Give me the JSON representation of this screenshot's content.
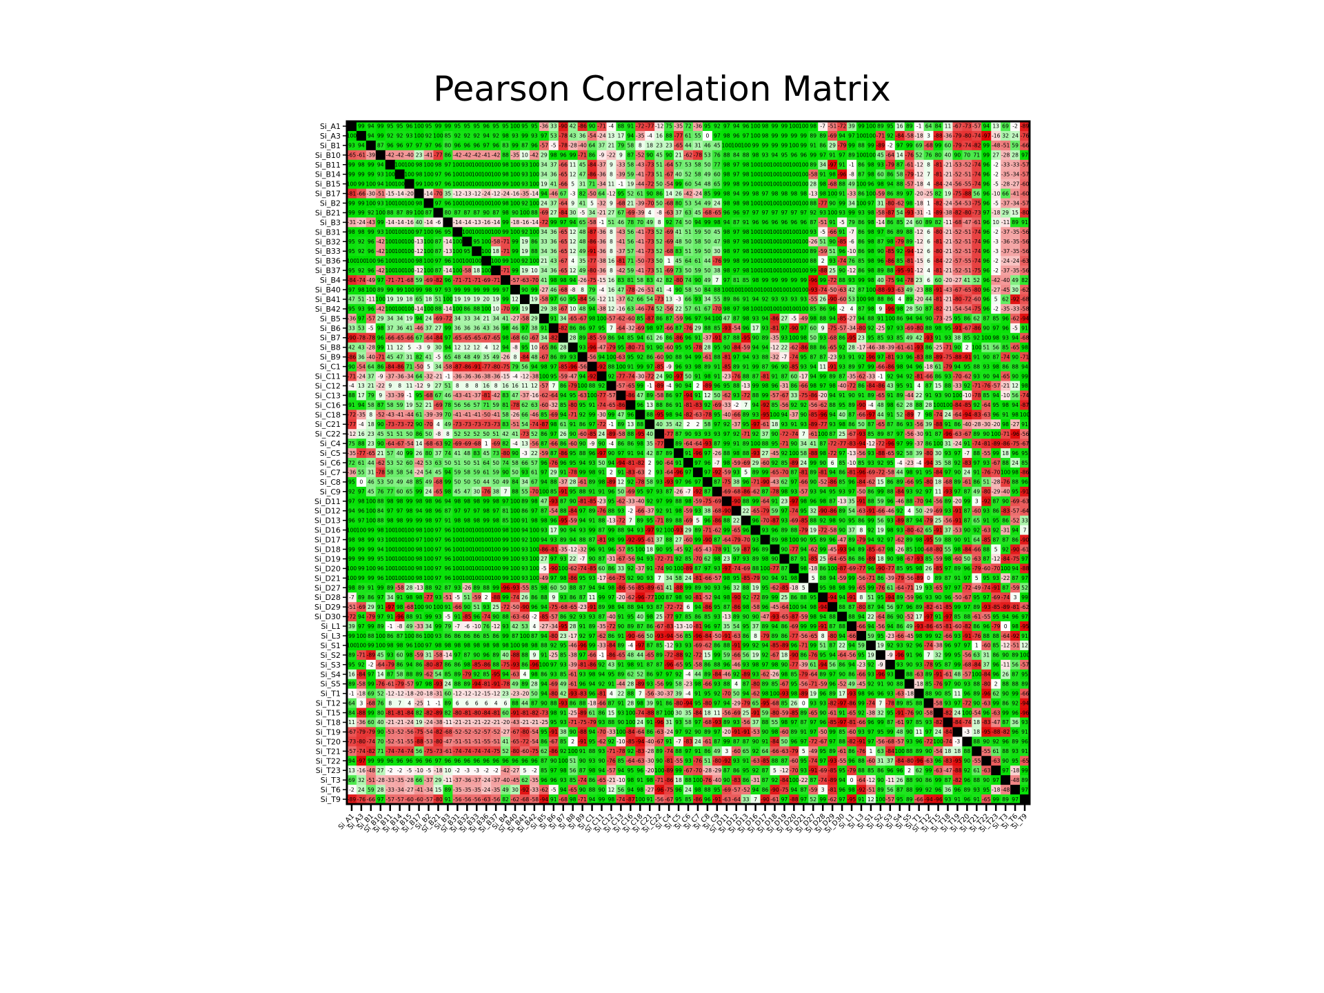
{
  "chart_data": {
    "type": "heatmap",
    "title": "Pearson Correlation Matrix",
    "labels": [
      "Si_A1",
      "Si_A3",
      "Si_B1",
      "Si_B10",
      "Si_B11",
      "Si_B14",
      "Si_B15",
      "Si_B17",
      "Si_B2",
      "Si_B21",
      "Si_B3",
      "Si_B31",
      "Si_B32",
      "Si_B33",
      "Si_B36",
      "Si_B37",
      "Si_B4",
      "Si_B40",
      "Si_B41",
      "Si_B42",
      "Si_B5",
      "Si_B6",
      "Si_B7",
      "Si_B8",
      "Si_B9",
      "Si_C1",
      "Si_C11",
      "Si_C12",
      "Si_C13",
      "Si_C16",
      "Si_C18",
      "Si_C21",
      "Si_C22",
      "Si_C4",
      "Si_C5",
      "Si_C6",
      "Si_C7",
      "Si_C8",
      "Si_C9",
      "Si_D11",
      "Si_D12",
      "Si_D13",
      "Si_D16",
      "Si_D17",
      "Si_D18",
      "Si_D19",
      "Si_D20",
      "Si_D21",
      "Si_D27",
      "Si_D28",
      "Si_D29",
      "Si_D30",
      "Si_L1",
      "Si_L3",
      "Si_S1",
      "Si_S2",
      "Si_S3",
      "Si_S4",
      "Si_S5",
      "Si_T1",
      "Si_T12",
      "Si_T15",
      "Si_T18",
      "Si_T19",
      "Si_T20",
      "Si_T21",
      "Si_T22",
      "Si_T23",
      "Si_T3",
      "Si_T6",
      "Si_T9"
    ],
    "row_labels_visible": [
      "Si_A1",
      "Si_A3",
      "Si_B1",
      "Si_B10",
      "Si_B11",
      "Si_B14",
      "Si_B15",
      "Si_B17",
      "Si_B2",
      "Si_B21",
      "Si_B3",
      "Si_B31",
      "Si_B32",
      "Si_B33",
      "Si_B36",
      "Si_B37",
      "Si_B4",
      "Si_B40",
      "Si_B41",
      "Si_B42",
      "Si_B5",
      "Si_B6",
      "Si_B7",
      "Si_B8",
      "Si_B9",
      "Si_C1",
      "Si_C11",
      "Si_C12",
      "Si_C13",
      "Si_C16",
      "Si_C18",
      "Si_C21",
      "Si_C22",
      "Si_C4",
      "Si_C5",
      "Si_C6",
      "Si_C7",
      "Si_C8",
      "Si_C9",
      "Si_D11",
      "Si_D12",
      "Si_D13",
      "Si_D16",
      "Si_D17",
      "Si_D18",
      "Si_D19",
      "Si_D20",
      "Si_D21",
      "Si_D27",
      "Si_D28",
      "Si_D29",
      "Si_D30",
      "Si_L1",
      "Si_L3",
      "Si_S1",
      "Si_S2",
      "Si_S3",
      "Si_S4",
      "Si_S5",
      "Si_T1",
      "Si_T12",
      "Si_T15",
      "Si_T18",
      "Si_T19",
      "Si_T20",
      "Si_T21",
      "Si_T22",
      "Si_T23",
      "Si_T3",
      "Si_T6",
      "Si_T9"
    ],
    "col_labels_visible": [
      "Si_A1",
      "Si_A3",
      "Si_B1",
      "Si_B10",
      "Si_B11",
      "Si_B14",
      "Si_B15",
      "Si_B17",
      "Si_B2",
      "Si_B21",
      "Si_B3",
      "Si_B31",
      "Si_B32",
      "Si_B33",
      "Si_B36",
      "Si_B37",
      "Si_B4",
      "Si_B40",
      "Si_B41",
      "Si_B42",
      "Si_B5",
      "Si_B6",
      "Si_B7",
      "Si_B8",
      "Si_B9",
      "Si_C1",
      "Si_C11",
      "Si_C12",
      "Si_C13",
      "Si_C16",
      "Si_C18",
      "Si_C21",
      "Si_C22",
      "Si_C4",
      "Si_C5",
      "Si_C6",
      "Si_C7",
      "Si_C8",
      "Si_C9",
      "Si_D11",
      "Si_D12",
      "Si_D13",
      "Si_D16",
      "Si_D17",
      "Si_D18",
      "Si_D19",
      "Si_D20",
      "Si_D21",
      "Si_D27",
      "Si_D28",
      "Si_D29",
      "Si_D30",
      "Si_L1",
      "Si_L3",
      "Si_S1",
      "Si_S2",
      "Si_S3",
      "Si_S4",
      "Si_S5",
      "Si_T1",
      "Si_T12",
      "Si_T15",
      "Si_T18",
      "Si_T19",
      "Si_T20",
      "Si_T21",
      "Si_T22",
      "Si_T23",
      "Si_T3",
      "Si_T6",
      "Si_T9"
    ],
    "value_range": [
      -100,
      100
    ],
    "diagonal_color": "#000000",
    "colors": {
      "positive": "#00e000",
      "negative": "#e00000",
      "zero": "#ffffff"
    },
    "row_values_partial": {
      "Si_A1": [
        100,
        99,
        94,
        99,
        95,
        95,
        96,
        100,
        95,
        99,
        99,
        95,
        95,
        95,
        96,
        95,
        95,
        100,
        95,
        95
      ],
      "Si_A3": [
        100,
        100,
        94,
        99,
        92,
        92,
        93,
        100,
        92,
        100,
        85,
        92,
        92,
        92,
        94,
        92,
        98,
        93,
        99,
        93
      ],
      "Si_B1": [
        93,
        94,
        100,
        87,
        96,
        96,
        97,
        97,
        97,
        96,
        80,
        96,
        96,
        96,
        97,
        96,
        83,
        99,
        87,
        96
      ],
      "Si_B10": [
        -65,
        -61,
        -39,
        100,
        -42,
        -42,
        -40,
        23,
        -41,
        -77,
        86,
        -42,
        -42,
        -42,
        -41,
        -42,
        88,
        -35,
        10,
        -42
      ],
      "Si_B11": [
        99,
        98,
        99,
        94,
        100,
        100,
        100,
        98,
        100,
        98,
        97,
        100,
        100,
        100,
        100,
        100,
        98,
        100,
        93,
        100
      ],
      "Si_B14": [
        99,
        99,
        99,
        93,
        100,
        100,
        100,
        98,
        100,
        97,
        96,
        100,
        100,
        100,
        100,
        100,
        98,
        100,
        93,
        100
      ],
      "Si_B15": [
        100,
        99,
        100,
        94,
        100,
        100,
        100,
        99,
        100,
        97,
        96,
        100,
        100,
        100,
        100,
        100,
        99,
        100,
        93,
        100
      ],
      "Si_B17": [
        -81,
        -66,
        -30,
        -51,
        -15,
        -14,
        -20,
        100,
        -14,
        -70,
        35,
        -12,
        -13,
        -12,
        -24,
        -12,
        -24,
        -16,
        -35,
        -14
      ],
      "Si_B2": [
        99,
        99,
        100,
        93,
        100,
        100,
        100,
        98,
        100,
        97,
        96,
        100,
        100,
        100,
        100,
        100,
        98,
        100,
        92,
        100
      ],
      "Si_B21": [
        99,
        99,
        92,
        100,
        88,
        87,
        89,
        100,
        87,
        100,
        80,
        87,
        87,
        87,
        90,
        87,
        98,
        90,
        100,
        88
      ],
      "Si_B3": [
        -31,
        -24,
        -43,
        99,
        -14,
        -14,
        -16,
        40,
        -14,
        -6,
        100,
        -14,
        -14,
        -13,
        -16,
        -14,
        99,
        -18,
        -16,
        -14
      ],
      "Si_B31": [
        98,
        98,
        99,
        93,
        100,
        100,
        100,
        97,
        100,
        96,
        95,
        100,
        100,
        100,
        100,
        100,
        99,
        100,
        92,
        100
      ],
      "Si_B36": [
        100,
        100,
        100,
        96,
        100,
        100,
        100,
        98,
        100,
        97,
        96,
        100,
        100,
        100,
        100,
        100,
        99,
        100,
        92,
        100
      ],
      "Si_B4": [
        -84,
        -74,
        -49,
        97,
        -71,
        -71,
        -68,
        59,
        -69,
        -82,
        96,
        -71,
        -71,
        -71,
        -69,
        -71,
        100,
        -57,
        -63,
        -70
      ],
      "Si_B40": [
        97,
        98,
        100,
        89,
        99,
        99,
        100,
        99,
        98,
        97,
        93,
        99,
        99,
        99,
        99,
        99,
        97,
        100,
        90,
        99
      ],
      "Si_B41": [
        47,
        51,
        -11,
        100,
        19,
        19,
        18,
        65,
        18,
        51,
        100,
        19,
        19,
        19,
        20,
        19,
        99,
        12,
        100,
        19
      ],
      "Si_B5": [
        -36,
        97,
        -57,
        29,
        34,
        34,
        19,
        94,
        24,
        -69,
        -72,
        34,
        33,
        34,
        21,
        34,
        41,
        -27,
        -58,
        29
      ],
      "Si_B6": [
        33,
        53,
        -5,
        98,
        37,
        36,
        41,
        -46,
        37,
        27,
        99,
        36,
        36,
        36,
        43,
        36,
        98,
        46,
        97,
        38
      ],
      "Si_B7": [
        -90,
        -78,
        -78,
        96,
        -66,
        -65,
        -66,
        67,
        -64,
        -84,
        97,
        -65,
        -65,
        -65,
        -67,
        -65,
        98,
        -68,
        60,
        -67
      ],
      "Si_B8": [
        42,
        43,
        -28,
        99,
        11,
        12,
        5,
        -3,
        9,
        30,
        94,
        12,
        12,
        12,
        4,
        12,
        94,
        -8,
        95,
        10
      ],
      "Si_B9": [
        -86,
        36,
        -40,
        -71,
        45,
        47,
        31,
        82,
        41,
        -5,
        65,
        48,
        48,
        49,
        35,
        49,
        -26,
        8,
        -84,
        48
      ],
      "Si_C1": [
        90,
        -54,
        64,
        86,
        -84,
        -86,
        71,
        -50,
        5,
        34,
        -58,
        -87,
        -86,
        -91,
        -77,
        -80,
        -75,
        79,
        56,
        94
      ],
      "Si_C11": [
        -71,
        -24,
        37,
        -9,
        -37,
        -36,
        -34,
        64,
        -32,
        -21,
        -1,
        -36,
        -36,
        -36,
        -38,
        -36,
        -15,
        -4,
        -12,
        -38
      ],
      "Si_C12": [
        -4,
        13,
        21,
        -22,
        9,
        8,
        11,
        -12,
        9,
        27,
        51,
        8,
        8,
        8,
        16,
        8,
        16,
        16,
        11,
        12
      ],
      "Si_C13": [
        88,
        17,
        79,
        9,
        -33,
        -39,
        -1,
        95,
        -68,
        67,
        46,
        -43,
        -41,
        -37,
        -81,
        -42,
        83,
        47,
        -37,
        -16
      ],
      "Si_C16": [
        91,
        94,
        58,
        87,
        58,
        59,
        19,
        52,
        21,
        -69,
        78,
        56,
        56,
        57,
        71,
        59,
        81,
        -78,
        62,
        63
      ],
      "Si_C18": [
        -72,
        -35,
        8,
        -52,
        -43,
        -41,
        -44,
        61,
        -39,
        -39,
        70,
        -41,
        -41,
        -41,
        -50,
        -41,
        58,
        -26,
        66,
        -46
      ],
      "Si_C21": [
        -77,
        -4,
        18,
        90,
        -73,
        -73,
        -72,
        90,
        -70,
        4,
        49,
        -73,
        -73,
        -73,
        -73,
        -73,
        83,
        -51,
        54,
        -74
      ],
      "Si_C22": [
        -12,
        16,
        23,
        45,
        51,
        51,
        50,
        86,
        50,
        -8,
        8,
        52,
        52,
        52,
        50,
        51,
        42,
        41,
        -73,
        52
      ],
      "Si_C4": [
        75,
        88,
        23,
        90,
        -64,
        -67,
        -54,
        14,
        -68,
        -63,
        92,
        -69,
        -69,
        -68,
        1,
        -69,
        82,
        -4,
        13,
        -56
      ],
      "Si_C5": [
        -35,
        -77,
        -65,
        21,
        57,
        40,
        99,
        26,
        80,
        37,
        74,
        41,
        48,
        83,
        45,
        73,
        -80,
        90,
        -3,
        22
      ],
      "Si_C6": [
        72,
        61,
        44,
        -62,
        53,
        52,
        60,
        -42,
        53,
        63,
        50,
        51,
        50,
        51,
        64,
        50,
        74,
        58,
        66,
        57
      ],
      "Si_C7": [
        -36,
        55,
        31,
        -78,
        58,
        58,
        54,
        -24,
        54,
        45,
        94,
        59,
        58,
        59,
        61,
        59,
        90,
        50,
        93,
        61
      ],
      "Si_C8": [
        95,
        0,
        46,
        53,
        50,
        49,
        48,
        85,
        49,
        -68,
        99,
        50,
        50,
        50,
        44,
        50,
        49,
        84,
        34,
        67
      ],
      "Si_C9": [
        92,
        97,
        45,
        76,
        77,
        60,
        65,
        99,
        24,
        -65,
        98,
        45,
        47,
        30,
        -76,
        38,
        7,
        88,
        55,
        -70
      ],
      "Si_D11": [
        97,
        98,
        100,
        88,
        98,
        98,
        99,
        98,
        98,
        96,
        94,
        98,
        98,
        98,
        99,
        98,
        97,
        100,
        89,
        98
      ],
      "Si_D12": [
        94,
        96,
        100,
        84,
        97,
        97,
        98,
        94,
        98,
        96,
        87,
        97,
        97,
        97,
        98,
        97,
        81,
        100,
        86,
        97
      ],
      "Si_D13": [
        96,
        97,
        100,
        88,
        98,
        98,
        99,
        99,
        98,
        97,
        91,
        98,
        98,
        98,
        99,
        98,
        85,
        100,
        91,
        98
      ],
      "Si_D16": [
        100,
        100,
        99,
        98,
        100,
        100,
        100,
        98,
        100,
        97,
        96,
        100,
        100,
        100,
        100,
        100,
        98,
        100,
        94,
        100
      ],
      "Si_D17": [
        98,
        98,
        99,
        93,
        100,
        100,
        100,
        97,
        100,
        97,
        96,
        100,
        100,
        100,
        100,
        100,
        99,
        100,
        92,
        100
      ],
      "Si_D18": [
        99,
        99,
        99,
        94,
        100,
        100,
        100,
        98,
        100,
        97,
        96,
        100,
        100,
        100,
        100,
        100,
        99,
        100,
        93,
        100
      ],
      "Si_D19": [
        99,
        99,
        99,
        95,
        100,
        100,
        100,
        98,
        100,
        97,
        96,
        100,
        100,
        100,
        100,
        100,
        99,
        100,
        93,
        100
      ],
      "Si_D20": [
        100,
        99,
        100,
        96,
        100,
        100,
        100,
        98,
        100,
        97,
        96,
        100,
        100,
        100,
        100,
        100,
        99,
        100,
        93,
        100
      ],
      "Si_D21": [
        100,
        99,
        99,
        96,
        100,
        100,
        100,
        98,
        100,
        97,
        96,
        100,
        100,
        100,
        100,
        100,
        99,
        100,
        93,
        100
      ],
      "Si_L1": [
        39,
        97,
        99,
        89,
        -1,
        -8,
        49,
        -33,
        34,
        99,
        79,
        -7,
        -6,
        -10,
        76,
        -12,
        93,
        42,
        53,
        4
      ],
      "Si_L3": [
        99,
        100,
        88,
        100,
        86,
        87,
        100,
        86,
        100,
        93,
        86,
        86,
        86,
        86,
        85,
        86,
        99,
        87,
        100,
        87
      ],
      "Si_S1": [
        100,
        100,
        99,
        100,
        98,
        98,
        96,
        100,
        97,
        98,
        98,
        98,
        98,
        98,
        98,
        98,
        98,
        100,
        98,
        98
      ],
      "Si_T1": [
        -1,
        -18,
        69,
        52,
        -12,
        -12,
        -18,
        -20,
        -18,
        -31,
        60,
        -12,
        -12,
        -12,
        -15,
        -12,
        23,
        -23,
        -20,
        50
      ],
      "Si_T12": [
        64,
        3,
        -68,
        76,
        8,
        7,
        4,
        -25,
        1,
        -1,
        89,
        6,
        6,
        6,
        6,
        4,
        6,
        88,
        44,
        87
      ],
      "Si_T15": [
        84,
        -88,
        99,
        80,
        -81,
        -81,
        -84,
        82,
        -82,
        -89,
        82,
        -80,
        -81,
        -80,
        -84,
        -81,
        60,
        -91,
        -81,
        -82
      ],
      "Si_T18": [
        11,
        -36,
        60,
        40,
        -21,
        -21,
        -24,
        19,
        -24,
        -38,
        -11,
        -21,
        -21,
        -21,
        -22,
        -21,
        -20,
        -43,
        -21,
        -21
      ],
      "Si_T19": [
        -67,
        -79,
        -79,
        90,
        -53,
        -52,
        -56,
        -75,
        -54,
        -82,
        -68,
        -52,
        -52,
        -52,
        -57,
        -52,
        -27,
        -67,
        -80,
        -54
      ],
      "Si_T20": [
        -73,
        -80,
        -74,
        70,
        -52,
        -51,
        -55,
        -88,
        -53,
        -80,
        -47,
        -51,
        -51,
        -51,
        -55,
        -51,
        41,
        -65,
        -72,
        -54
      ],
      "Si_T21": [
        -57,
        -74,
        -82,
        71,
        -74,
        -74,
        -74,
        56,
        -75,
        -73,
        -61,
        -74,
        -74,
        -74,
        -74,
        -75,
        52,
        -80,
        -60,
        -75
      ],
      "Si_T22": [
        94,
        -97,
        99,
        99,
        96,
        96,
        96,
        96,
        96,
        97,
        96,
        96,
        96,
        96,
        96,
        96,
        96,
        96,
        96,
        96
      ],
      "Si_T23": [
        13,
        -16,
        -48,
        27,
        -2,
        -2,
        -5,
        -10,
        -5,
        -18,
        10,
        -2,
        -3,
        -3,
        -2,
        -2,
        -42,
        -27,
        5,
        -2
      ],
      "Si_T3": [
        69,
        32,
        -51,
        -28,
        -33,
        -35,
        -28,
        66,
        -37,
        29,
        -11,
        -37,
        -36,
        -37,
        -24,
        -37,
        -40,
        -45,
        62,
        -35
      ],
      "Si_T6": [
        -2,
        24,
        59,
        28,
        -33,
        -34,
        -27,
        -41,
        -34,
        15,
        89,
        -35,
        -35,
        -35,
        -24,
        -35,
        49,
        30,
        -92,
        -33
      ],
      "Si_T9": [
        -89,
        -76,
        -66,
        97,
        -57,
        -57,
        -60,
        -60,
        -57,
        -80,
        91,
        -56,
        -56,
        -56,
        -63,
        -56,
        82,
        -62,
        -68,
        -58
      ]
    }
  }
}
